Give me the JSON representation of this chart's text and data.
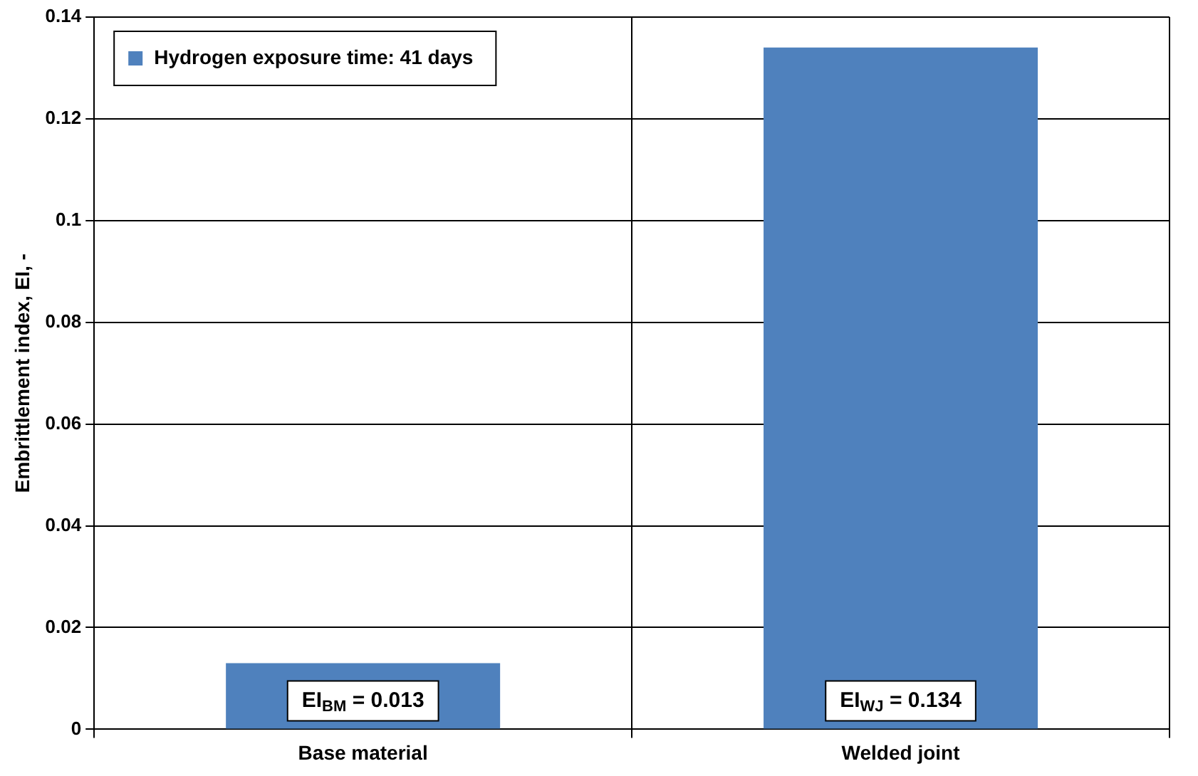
{
  "chart_data": {
    "type": "bar",
    "ylabel": "Embrittlement index, EI, -",
    "categories": [
      "Base material",
      "Welded joint"
    ],
    "series": [
      {
        "name": "Hydrogen exposure time: 41 days",
        "color": "#4f81bd",
        "values": [
          0.013,
          0.134
        ],
        "value_labels": [
          "EI$_{BM}$ = 0.013",
          "EI$_{WJ}$ = 0.134"
        ]
      }
    ],
    "ylim": [
      0,
      0.14
    ],
    "yticks": [
      0,
      0.02,
      0.04,
      0.06,
      0.08,
      0.1,
      0.12,
      0.14
    ],
    "grid": true,
    "legend": "top left"
  }
}
